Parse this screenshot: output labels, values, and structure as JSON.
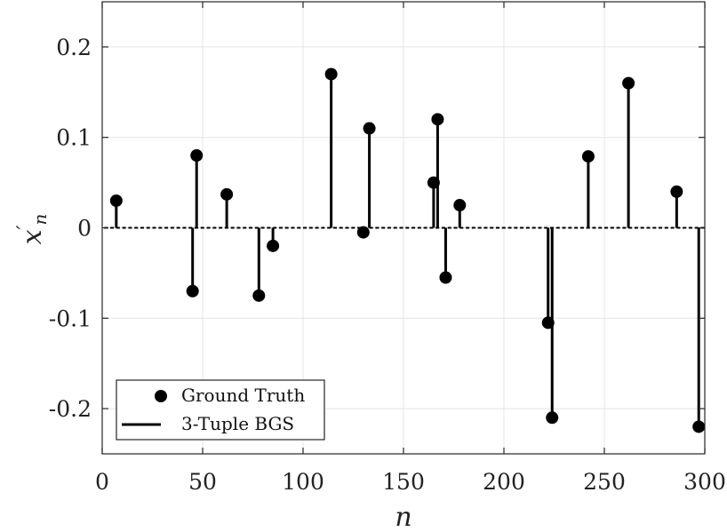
{
  "chart_data": {
    "type": "scatter",
    "xlabel": "n",
    "ylabel": "x'_n",
    "xlim": [
      0,
      300
    ],
    "ylim": [
      -0.25,
      0.25
    ],
    "xticks": [
      0,
      50,
      100,
      150,
      200,
      250,
      300
    ],
    "xtick_labels": [
      "0",
      "50",
      "100",
      "150",
      "200",
      "250",
      "300"
    ],
    "yticks": [
      0.2,
      0.1,
      0,
      -0.1,
      -0.2
    ],
    "ytick_labels": [
      "0.2",
      "0.1",
      "0",
      "-0.1",
      "-0.2"
    ],
    "grid": true,
    "legend_position": "bottom-left",
    "series": [
      {
        "name": "Ground Truth",
        "style": "marker",
        "color": "#000000",
        "points": [
          [
            7,
            0.03
          ],
          [
            45,
            -0.07
          ],
          [
            47,
            0.08
          ],
          [
            62,
            0.037
          ],
          [
            78,
            -0.075
          ],
          [
            85,
            -0.02
          ],
          [
            114,
            0.17
          ],
          [
            130,
            -0.005
          ],
          [
            133,
            0.11
          ],
          [
            165,
            0.05
          ],
          [
            167,
            0.12
          ],
          [
            171,
            -0.055
          ],
          [
            178,
            0.025
          ],
          [
            222,
            -0.105
          ],
          [
            224,
            -0.21
          ],
          [
            242,
            0.079
          ],
          [
            262,
            0.16
          ],
          [
            286,
            0.04
          ],
          [
            297,
            -0.22
          ]
        ]
      },
      {
        "name": "3-Tuple BGS",
        "style": "stem",
        "color": "#000000",
        "points": [
          [
            7,
            0.03
          ],
          [
            45,
            -0.07
          ],
          [
            47,
            0.08
          ],
          [
            62,
            0.037
          ],
          [
            78,
            -0.075
          ],
          [
            85,
            -0.02
          ],
          [
            114,
            0.17
          ],
          [
            130,
            -0.005
          ],
          [
            133,
            0.11
          ],
          [
            165,
            0.05
          ],
          [
            167,
            0.12
          ],
          [
            171,
            -0.055
          ],
          [
            178,
            0.025
          ],
          [
            222,
            -0.105
          ],
          [
            224,
            -0.21
          ],
          [
            242,
            0.079
          ],
          [
            262,
            0.16
          ],
          [
            286,
            0.04
          ],
          [
            297,
            -0.22
          ]
        ]
      }
    ]
  }
}
